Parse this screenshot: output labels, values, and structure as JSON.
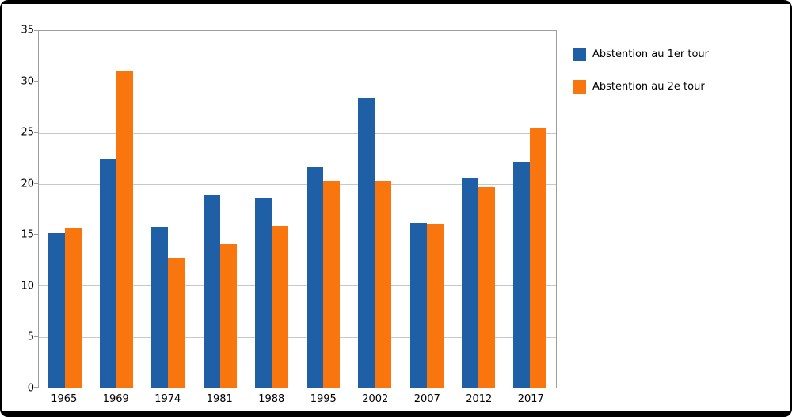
{
  "chart_data": {
    "type": "bar",
    "title": "",
    "categories": [
      "1965",
      "1969",
      "1974",
      "1981",
      "1988",
      "1995",
      "2002",
      "2007",
      "2012",
      "2017"
    ],
    "series": [
      {
        "name": "Abstention au 1er tour",
        "color": "#1f5fa6",
        "values": [
          15.2,
          22.4,
          15.8,
          18.9,
          18.6,
          21.6,
          28.4,
          16.2,
          20.5,
          22.2
        ]
      },
      {
        "name": "Abstention au 2e tour",
        "color": "#f8760d",
        "values": [
          15.7,
          31.1,
          12.7,
          14.1,
          15.9,
          20.3,
          20.3,
          16.0,
          19.7,
          25.4
        ]
      }
    ],
    "ylim": [
      0,
      35
    ],
    "yticks": [
      0,
      5,
      10,
      15,
      20,
      25,
      30,
      35
    ],
    "grid": true,
    "legend_position": "right"
  }
}
